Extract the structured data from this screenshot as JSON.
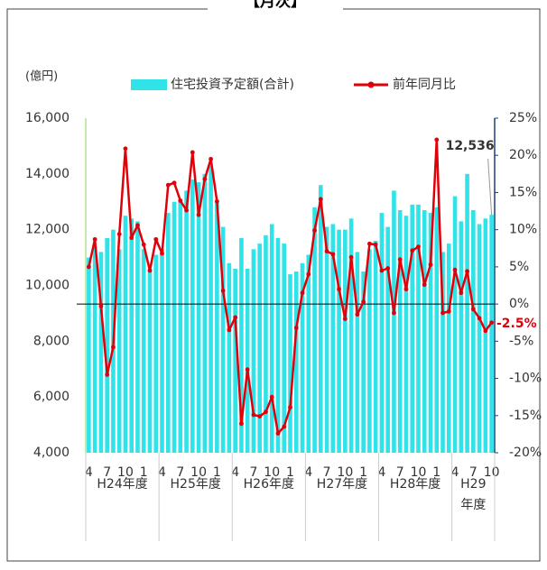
{
  "chart_data": {
    "type": "bar_line",
    "title": "【月次】",
    "y_axis_label": "(億円)",
    "categories": [
      "4",
      null,
      null,
      "7",
      null,
      null,
      "10",
      null,
      null,
      "1",
      null,
      null,
      "4",
      null,
      null,
      "7",
      null,
      null,
      "10",
      null,
      null,
      "1",
      null,
      null,
      "4",
      null,
      null,
      "7",
      null,
      null,
      "10",
      null,
      null,
      "1",
      null,
      null,
      "4",
      null,
      null,
      "7",
      null,
      null,
      "10",
      null,
      null,
      "1",
      null,
      null,
      "4",
      null,
      null,
      "7",
      null,
      null,
      "10",
      null,
      null,
      "1",
      null,
      null,
      "4",
      null,
      null,
      "7",
      null,
      null,
      "10"
    ],
    "groups": [
      "H24年度",
      "H25年度",
      "H26年度",
      "H27年度",
      "H28年度",
      "H29\n年度"
    ],
    "series": [
      {
        "name": "住宅投資予定額(合計)",
        "color": "#2fe3e8",
        "values": [
          11000,
          11400,
          11200,
          11700,
          12000,
          11300,
          12500,
          12400,
          12300,
          11300,
          10600,
          11100,
          11300,
          12600,
          13000,
          13100,
          13400,
          13800,
          13700,
          14000,
          14300,
          13000,
          12100,
          10800,
          10600,
          11700,
          10600,
          11300,
          11500,
          11800,
          12200,
          11700,
          11500,
          10400,
          10500,
          10800,
          11100,
          12800,
          13600,
          12100,
          12200,
          12000,
          12000,
          12400,
          11200,
          10500,
          11300,
          11600,
          12600,
          12100,
          13400,
          12700,
          12500,
          12900,
          12900,
          12700,
          12600,
          12800,
          11200,
          11500,
          13200,
          12300,
          14000,
          12700,
          12200,
          12400,
          12536
        ],
        "value_labels": [
          null,
          null,
          null,
          null,
          null,
          null,
          null,
          null,
          null,
          null,
          null,
          null,
          null,
          null,
          null,
          null,
          null,
          null,
          null,
          null,
          null,
          null,
          null,
          null,
          null,
          null,
          null,
          null,
          null,
          null,
          null,
          null,
          null,
          null,
          null,
          null,
          null,
          null,
          null,
          null,
          null,
          null,
          null,
          null,
          null,
          null,
          null,
          null,
          null,
          null,
          null,
          null,
          null,
          null,
          null,
          null,
          null,
          null,
          null,
          null,
          null,
          null,
          null,
          null,
          null,
          null,
          "12,536"
        ]
      },
      {
        "name": "前年同月比",
        "color": "#e0000a",
        "axis": "y2",
        "values": [
          5.0,
          8.7,
          -0.3,
          -9.5,
          -5.8,
          9.4,
          20.9,
          8.9,
          10.6,
          8.0,
          4.5,
          8.7,
          6.8,
          16.0,
          16.3,
          13.9,
          12.6,
          20.4,
          12.0,
          16.8,
          19.5,
          13.8,
          1.8,
          -3.5,
          -1.8,
          -16.1,
          -8.8,
          -14.9,
          -15.1,
          -14.5,
          -12.5,
          -17.4,
          -16.5,
          -13.9,
          -3.2,
          1.5,
          4.0,
          9.9,
          14.1,
          7.1,
          6.7,
          2.0,
          -2.0,
          6.3,
          -1.4,
          0.3,
          8.1,
          8.0,
          4.5,
          4.8,
          -1.2,
          6.0,
          2.0,
          7.2,
          7.7,
          2.6,
          5.3,
          22.1,
          -1.2,
          -1.0,
          4.6,
          1.5,
          4.4,
          -0.7,
          -1.9,
          -3.6,
          -2.5
        ],
        "value_labels": [
          null,
          null,
          null,
          null,
          null,
          null,
          null,
          null,
          null,
          null,
          null,
          null,
          null,
          null,
          null,
          null,
          null,
          null,
          null,
          null,
          null,
          null,
          null,
          null,
          null,
          null,
          null,
          null,
          null,
          null,
          null,
          null,
          null,
          null,
          null,
          null,
          null,
          null,
          null,
          null,
          null,
          null,
          null,
          null,
          null,
          null,
          null,
          null,
          null,
          null,
          null,
          null,
          null,
          null,
          null,
          null,
          null,
          null,
          null,
          null,
          null,
          null,
          null,
          null,
          null,
          null,
          "-2.5%"
        ]
      }
    ],
    "ylim": [
      4000,
      16000
    ],
    "yticks": [
      {
        "value": 4000,
        "label": "4,000"
      },
      {
        "value": 6000,
        "label": "6,000"
      },
      {
        "value": 8000,
        "label": "8,000"
      },
      {
        "value": 10000,
        "label": "10,000"
      },
      {
        "value": 12000,
        "label": "12,000"
      },
      {
        "value": 14000,
        "label": "14,000"
      },
      {
        "value": 16000,
        "label": "16,000"
      }
    ],
    "y2lim": [
      -20,
      25
    ],
    "y2ticks": [
      {
        "value": -20,
        "label": "-20%"
      },
      {
        "value": -15,
        "label": "-15%"
      },
      {
        "value": -10,
        "label": "-10%"
      },
      {
        "value": -5,
        "label": "-5%"
      },
      {
        "value": 0,
        "label": "0%"
      },
      {
        "value": 5,
        "label": "5%"
      },
      {
        "value": 10,
        "label": "10%"
      },
      {
        "value": 15,
        "label": "15%"
      },
      {
        "value": 20,
        "label": "20%"
      },
      {
        "value": 25,
        "label": "25%"
      }
    ]
  }
}
